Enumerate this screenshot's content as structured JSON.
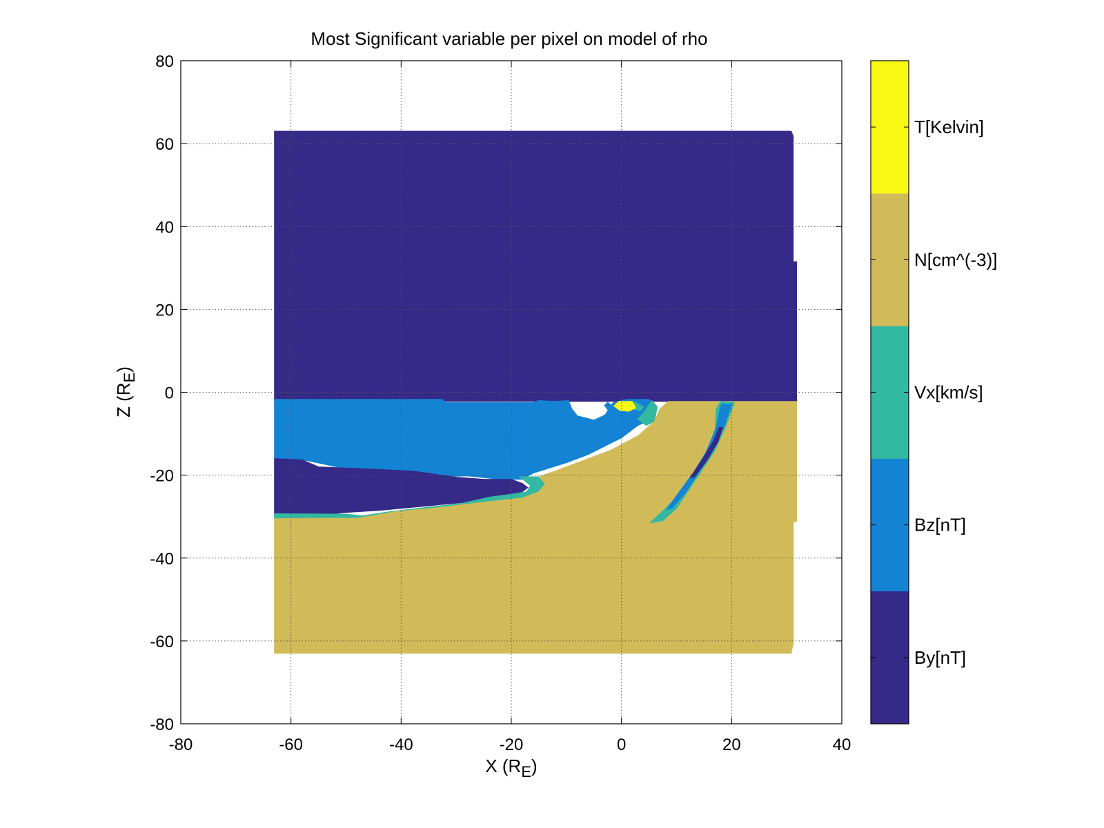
{
  "chart_data": {
    "type": "heatmap",
    "title": "Most Significant variable per pixel on model of rho",
    "xlabel": "X (R",
    "xlabel_sub": "E",
    "xlabel_close": ")",
    "ylabel": "Z (R",
    "ylabel_sub": "E",
    "ylabel_close": ")",
    "xlim": [
      -80,
      40
    ],
    "ylim": [
      -80,
      80
    ],
    "xticks": [
      -80,
      -60,
      -40,
      -20,
      0,
      20,
      40
    ],
    "yticks": [
      -80,
      -60,
      -40,
      -20,
      0,
      20,
      40,
      60,
      80
    ],
    "grid": true,
    "categories": [
      {
        "label": "By[nT]",
        "color": "#352a87"
      },
      {
        "label": "Bz[nT]",
        "color": "#1483d4"
      },
      {
        "label": "Vx[km/s]",
        "color": "#33b8a1"
      },
      {
        "label": "N[cm^(-3)]",
        "color": "#d1bb59"
      },
      {
        "label": "T[Kelvin]",
        "color": "#f9fa14"
      }
    ],
    "regions": [
      {
        "category": "By[nT]",
        "polygon": [
          [
            -63,
            63
          ],
          [
            30.8,
            63
          ],
          [
            31.2,
            61.8
          ],
          [
            31.2,
            31.5
          ],
          [
            31.8,
            31.5
          ],
          [
            31.8,
            -2.2
          ],
          [
            -63,
            -2.2
          ]
        ]
      },
      {
        "category": "Bz[nT]",
        "polygon": [
          [
            -63,
            -1.7
          ],
          [
            -32.5,
            -1.7
          ],
          [
            -32,
            -2.5
          ],
          [
            -16,
            -2.5
          ],
          [
            -15,
            -2
          ],
          [
            -12,
            -2.2
          ],
          [
            -9.6,
            -2
          ],
          [
            -9,
            -4
          ],
          [
            -8,
            -5.7
          ],
          [
            -5,
            -6.7
          ],
          [
            -3,
            -5.5
          ],
          [
            -1.5,
            -2.5
          ],
          [
            1,
            -1.7
          ],
          [
            5,
            -1.7
          ],
          [
            6,
            -3.5
          ],
          [
            5.5,
            -6.5
          ],
          [
            3,
            -8
          ],
          [
            0,
            -11
          ],
          [
            -3,
            -13
          ],
          [
            -6,
            -15
          ],
          [
            -10,
            -17
          ],
          [
            -16,
            -19.5
          ],
          [
            -18,
            -21
          ],
          [
            -22,
            -21
          ],
          [
            -28,
            -20.2
          ],
          [
            -36,
            -20.5
          ],
          [
            -46,
            -19.6
          ],
          [
            -57,
            -16.5
          ],
          [
            -63,
            -16
          ],
          [
            -63,
            -1.7
          ]
        ]
      },
      {
        "category": "By[nT]",
        "polygon": [
          [
            -63,
            -16
          ],
          [
            -58,
            -16.3
          ],
          [
            -55,
            -18
          ],
          [
            -46,
            -18.5
          ],
          [
            -38,
            -19
          ],
          [
            -30,
            -20.5
          ],
          [
            -25,
            -21
          ],
          [
            -20,
            -21
          ],
          [
            -18,
            -22
          ],
          [
            -17,
            -23
          ],
          [
            -18,
            -24
          ],
          [
            -22,
            -25
          ],
          [
            -28,
            -26.5
          ],
          [
            -36,
            -27.5
          ],
          [
            -44,
            -28.5
          ],
          [
            -50,
            -29
          ],
          [
            -54,
            -29.5
          ],
          [
            -63,
            -29.5
          ]
        ]
      },
      {
        "category": "Vx[km/s]",
        "polygon": [
          [
            -63,
            -29.3
          ],
          [
            -50,
            -29.4
          ],
          [
            -47,
            -29.8
          ],
          [
            -42,
            -28.8
          ],
          [
            -35,
            -27.7
          ],
          [
            -29,
            -26.8
          ],
          [
            -24,
            -25.3
          ],
          [
            -20,
            -24.6
          ],
          [
            -17.2,
            -24
          ],
          [
            -16.5,
            -22.5
          ],
          [
            -18.5,
            -20.4
          ],
          [
            -15,
            -20.4
          ],
          [
            -13.8,
            -22
          ],
          [
            -15,
            -24
          ],
          [
            -18,
            -25.5
          ],
          [
            -25,
            -26.5
          ],
          [
            -33,
            -27.8
          ],
          [
            -41,
            -28.8
          ],
          [
            -48,
            -30.4
          ],
          [
            -54,
            -30.4
          ],
          [
            -63,
            -30.5
          ]
        ]
      },
      {
        "category": "Vx[km/s]",
        "polygon": [
          [
            5.5,
            -2
          ],
          [
            6.5,
            -3.5
          ],
          [
            6,
            -7
          ],
          [
            4.5,
            -8
          ],
          [
            3,
            -6.5
          ],
          [
            4,
            -5
          ]
        ]
      },
      {
        "category": "Vx[km/s]",
        "polygon": [
          [
            2.4,
            -2.3
          ],
          [
            4,
            -3.5
          ],
          [
            3.5,
            -4.5
          ],
          [
            2.2,
            -4
          ]
        ]
      },
      {
        "category": "N[cm^(-3)]",
        "polygon": [
          [
            31.8,
            -2.2
          ],
          [
            31.8,
            -31.2
          ],
          [
            31.2,
            -31.2
          ],
          [
            31.2,
            -60.5
          ],
          [
            30.8,
            -63
          ],
          [
            -63,
            -63
          ],
          [
            -63,
            -30.5
          ],
          [
            -54,
            -30.4
          ],
          [
            -48,
            -30.4
          ],
          [
            -41,
            -28.8
          ],
          [
            -33,
            -27.8
          ],
          [
            -25,
            -26.5
          ],
          [
            -18,
            -25.5
          ],
          [
            -15,
            -24
          ],
          [
            -13.8,
            -22
          ],
          [
            -15,
            -20.4
          ],
          [
            -12,
            -19
          ],
          [
            -7,
            -16.5
          ],
          [
            -2,
            -14
          ],
          [
            3,
            -10.5
          ],
          [
            6,
            -7
          ],
          [
            7,
            -4
          ],
          [
            8.5,
            -2.2
          ],
          [
            31.8,
            -2.2
          ]
        ]
      },
      {
        "category": "Vx[km/s]",
        "polygon": [
          [
            18,
            -2.2
          ],
          [
            20.5,
            -2.5
          ],
          [
            19,
            -8
          ],
          [
            17,
            -14
          ],
          [
            14.5,
            -19
          ],
          [
            12,
            -24
          ],
          [
            10,
            -28
          ],
          [
            7.5,
            -31
          ],
          [
            5.2,
            -31.5
          ],
          [
            8,
            -28
          ],
          [
            11,
            -24
          ],
          [
            13.5,
            -19.5
          ],
          [
            15.5,
            -14.5
          ],
          [
            17,
            -9
          ],
          [
            17.2,
            -4
          ]
        ]
      },
      {
        "category": "Bz[nT]",
        "polygon": [
          [
            18.2,
            -2.8
          ],
          [
            20,
            -3
          ],
          [
            18.7,
            -8
          ],
          [
            16.6,
            -14
          ],
          [
            14.2,
            -19
          ],
          [
            11.7,
            -24
          ],
          [
            9.2,
            -28
          ],
          [
            8.2,
            -28.3
          ],
          [
            10.4,
            -24.2
          ],
          [
            13,
            -19.5
          ],
          [
            15.3,
            -14.6
          ],
          [
            17.2,
            -8.6
          ],
          [
            17.8,
            -4.5
          ]
        ]
      },
      {
        "category": "By[nT]",
        "polygon": [
          [
            18.4,
            -8.5
          ],
          [
            17.5,
            -12
          ],
          [
            15.5,
            -16.5
          ],
          [
            13.2,
            -20.5
          ],
          [
            12.5,
            -20.5
          ],
          [
            14.8,
            -16
          ],
          [
            16.8,
            -11.5
          ],
          [
            17.7,
            -8.5
          ]
        ]
      },
      {
        "category": "Bz[nT]",
        "polygon": [
          [
            -2.5,
            -2.4
          ],
          [
            -1.6,
            -3.4
          ],
          [
            -2.4,
            -4.3
          ],
          [
            -3.1,
            -3.2
          ]
        ]
      },
      {
        "category": "T[Kelvin]",
        "polygon": [
          [
            -0.5,
            -2.2
          ],
          [
            2,
            -2.2
          ],
          [
            2.6,
            -3.8
          ],
          [
            1.3,
            -4.6
          ],
          [
            -0.3,
            -4.4
          ],
          [
            -1.4,
            -3.3
          ]
        ]
      }
    ]
  }
}
